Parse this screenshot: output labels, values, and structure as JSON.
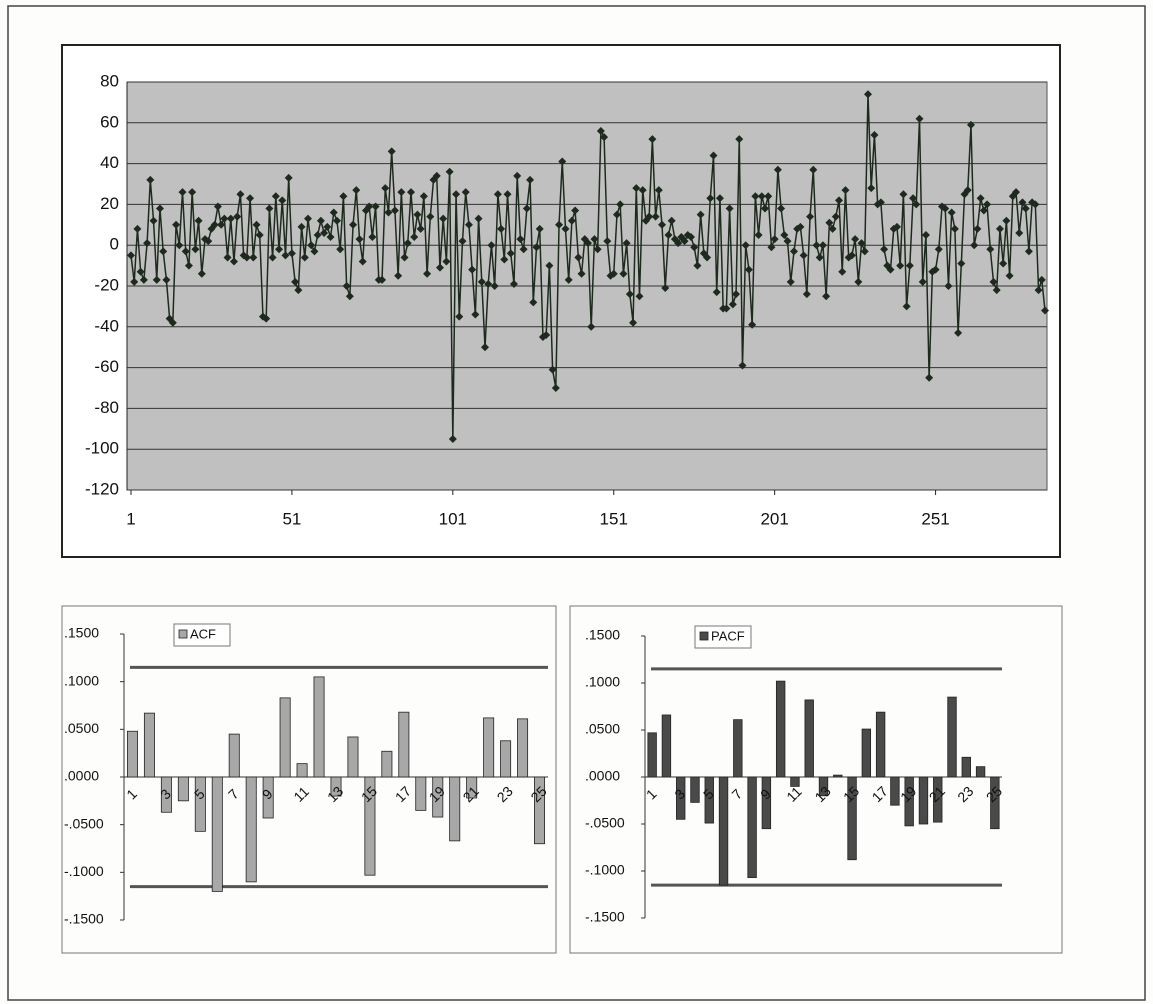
{
  "chart_data": [
    {
      "type": "line",
      "color": "#1e2a1e",
      "xlim": [
        1,
        285
      ],
      "xticks": [
        1,
        51,
        101,
        151,
        201,
        251
      ],
      "ylim": [
        -120,
        80
      ],
      "yticks": [
        -120,
        -100,
        -80,
        -60,
        -40,
        -20,
        0,
        20,
        40,
        60,
        80
      ],
      "grid": true,
      "values": [
        -5,
        -18,
        8,
        -13,
        -17,
        1,
        32,
        12,
        -17,
        18,
        -3,
        -17,
        -36,
        -38,
        10,
        0,
        26,
        -3,
        -10,
        26,
        -2,
        12,
        -14,
        3,
        2,
        8,
        10,
        19,
        10,
        13,
        -6,
        13,
        -8,
        14,
        25,
        -5,
        -6,
        23,
        -6,
        10,
        5,
        -35,
        -36,
        18,
        -6,
        24,
        -2,
        22,
        -5,
        33,
        -4,
        -18,
        -22,
        9,
        -6,
        13,
        0,
        -3,
        5,
        12,
        6,
        9,
        4,
        16,
        12,
        -2,
        24,
        -20,
        -25,
        10,
        27,
        3,
        -8,
        17,
        19,
        4,
        19,
        -17,
        -17,
        28,
        16,
        46,
        17,
        -15,
        26,
        -6,
        1,
        26,
        4,
        15,
        8,
        24,
        -14,
        14,
        32,
        34,
        -11,
        13,
        -8,
        36,
        -95,
        25,
        -35,
        2,
        26,
        10,
        -12,
        -34,
        13,
        -18,
        -50,
        -19,
        0,
        -20,
        25,
        8,
        -7,
        25,
        -4,
        -19,
        34,
        3,
        -2,
        18,
        32,
        -28,
        -1,
        8,
        -45,
        -44,
        -10,
        -61,
        -70,
        10,
        41,
        8,
        -17,
        12,
        17,
        -6,
        -14,
        3,
        1,
        -40,
        3,
        -2,
        56,
        53,
        2,
        -15,
        -14,
        15,
        20,
        -14,
        1,
        -24,
        -38,
        28,
        -25,
        27,
        12,
        14,
        52,
        14,
        27,
        10,
        -21,
        5,
        12,
        3,
        1,
        4,
        2,
        5,
        4,
        -1,
        -10,
        15,
        -4,
        -6,
        23,
        44,
        -23,
        23,
        -31,
        -31,
        18,
        -29,
        -24,
        52,
        -59,
        0,
        -12,
        -39,
        24,
        5,
        24,
        18,
        24,
        -1,
        3,
        37,
        18,
        5,
        2,
        -18,
        -3,
        8,
        9,
        -5,
        -24,
        14,
        37,
        0,
        -6,
        0,
        -25,
        11,
        8,
        14,
        22,
        -13,
        27,
        -6,
        -5,
        3,
        -18,
        1,
        -3,
        74,
        28,
        54,
        20,
        21,
        -2,
        -10,
        -12,
        8,
        9,
        -10,
        25,
        -30,
        -10,
        23,
        20,
        62,
        -18,
        5,
        -65,
        -13,
        -12,
        -2,
        19,
        18,
        -20,
        16,
        8,
        -43,
        -9,
        25,
        27,
        59,
        0,
        8,
        23,
        17,
        20,
        -2,
        -18,
        -22,
        8,
        -9,
        12,
        -15,
        24,
        26,
        6,
        21,
        18,
        -3,
        21,
        20,
        -22,
        -17,
        -32
      ]
    },
    {
      "type": "bar",
      "ylim": [
        -0.15,
        0.15
      ],
      "confidence_limit": 0.115,
      "yticks": [
        {
          "value": -0.15,
          "label": "-.1500"
        },
        {
          "value": -0.1,
          "label": "-.1000"
        },
        {
          "value": -0.05,
          "label": "-.0500"
        },
        {
          "value": 0,
          "label": ".0000"
        },
        {
          "value": 0.05,
          "label": ".0500"
        },
        {
          "value": 0.1,
          "label": ".1000"
        },
        {
          "value": 0.15,
          "label": ".1500"
        }
      ],
      "categories": [
        "1",
        null,
        "3",
        null,
        "5",
        null,
        "7",
        null,
        "9",
        null,
        "11",
        null,
        "13",
        null,
        "15",
        null,
        "17",
        null,
        "19",
        null,
        "21",
        null,
        "23",
        null,
        "25"
      ],
      "series": [
        {
          "name": "ACF",
          "color": "#a8a8a8",
          "values": [
            0.048,
            0.067,
            -0.037,
            -0.025,
            -0.057,
            -0.12,
            0.045,
            -0.11,
            -0.043,
            0.083,
            0.014,
            0.105,
            -0.02,
            0.042,
            -0.103,
            0.027,
            0.068,
            -0.035,
            -0.042,
            -0.067,
            -0.022,
            0.062,
            0.038,
            0.061,
            -0.07
          ]
        }
      ]
    },
    {
      "type": "bar",
      "ylim": [
        -0.15,
        0.15
      ],
      "confidence_limit": 0.115,
      "yticks": [
        {
          "value": -0.15,
          "label": "-.1500"
        },
        {
          "value": -0.1,
          "label": "-.1000"
        },
        {
          "value": -0.05,
          "label": "-.0500"
        },
        {
          "value": 0,
          "label": ".0000"
        },
        {
          "value": 0.05,
          "label": ".0500"
        },
        {
          "value": 0.1,
          "label": ".1000"
        },
        {
          "value": 0.15,
          "label": ".1500"
        }
      ],
      "categories": [
        "1",
        null,
        "3",
        null,
        "5",
        null,
        "7",
        null,
        "9",
        null,
        "11",
        null,
        "13",
        null,
        "15",
        null,
        "17",
        null,
        "19",
        null,
        "21",
        null,
        "23",
        null,
        "25"
      ],
      "series": [
        {
          "name": "PACF",
          "color": "#4a4a4a",
          "values": [
            0.047,
            0.066,
            -0.045,
            -0.027,
            -0.049,
            -0.115,
            0.061,
            -0.107,
            -0.055,
            0.102,
            -0.01,
            0.082,
            -0.02,
            0.002,
            -0.088,
            0.051,
            0.069,
            -0.03,
            -0.052,
            -0.05,
            -0.048,
            0.085,
            0.021,
            0.011,
            -0.055
          ]
        }
      ]
    }
  ]
}
